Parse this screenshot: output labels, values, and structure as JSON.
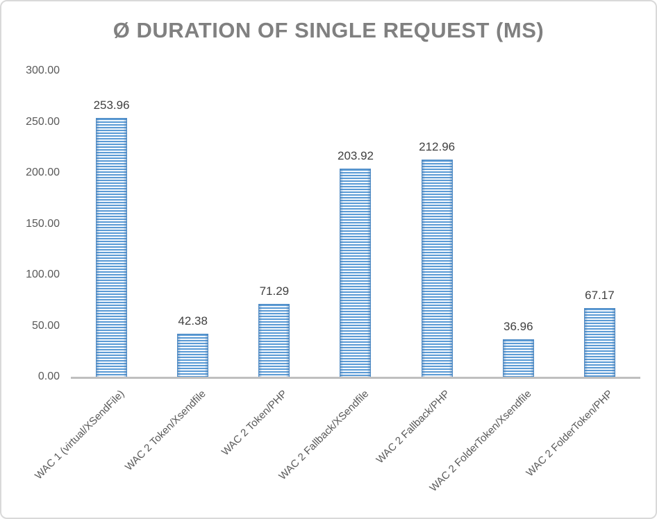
{
  "chart_data": {
    "type": "bar",
    "title": "Ø DURATION OF SINGLE REQUEST (MS)",
    "xlabel": "",
    "ylabel": "",
    "ylim": [
      0,
      300
    ],
    "grid": false,
    "legend": "none",
    "bar_pattern": "horizontal-stripes",
    "categories": [
      "WAC 1 (virtual/XSendFile)",
      "WAC 2 Token/Xsendfile",
      "WAC 2 Token/PHP",
      "WAC 2 Fallback/XSendfile",
      "WAC 2 Fallback/PHP",
      "WAC 2 FolderToken/Xsendfile",
      "WAC 2 FolderToken/PHP"
    ],
    "values": [
      253.96,
      42.38,
      71.29,
      203.92,
      212.96,
      36.96,
      67.17
    ],
    "value_labels": [
      "253.96",
      "42.38",
      "71.29",
      "203.92",
      "212.96",
      "36.96",
      "67.17"
    ],
    "y_ticks": [
      {
        "label": "0.00",
        "value": 0
      },
      {
        "label": "50.00",
        "value": 50
      },
      {
        "label": "100.00",
        "value": 100
      },
      {
        "label": "150.00",
        "value": 150
      },
      {
        "label": "200.00",
        "value": 200
      },
      {
        "label": "250.00",
        "value": 250
      },
      {
        "label": "300.00",
        "value": 300
      }
    ],
    "colors": {
      "bar_fill": "#5B9BD5",
      "bar_edge": "#4E8AC4",
      "axis_line": "#BFBFBF",
      "title": "#808080",
      "value_label": "#404040",
      "tick_label": "#595959",
      "frame_border": "#D9D9D9",
      "background": "#FFFFFF"
    }
  }
}
